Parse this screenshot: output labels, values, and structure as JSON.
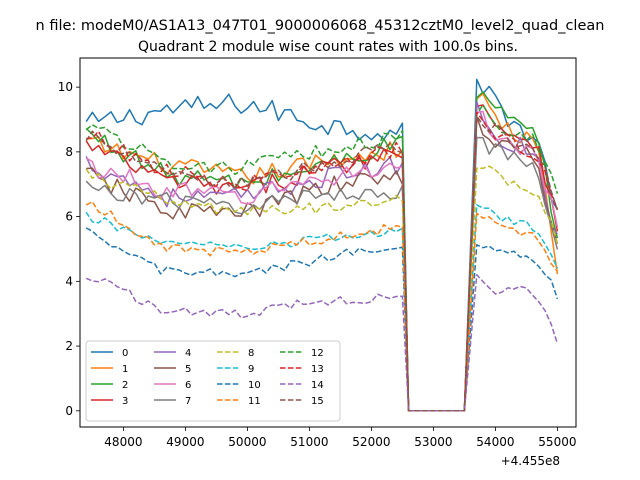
{
  "figure": {
    "suptitle": "n file: modeM0/AS1A13_047T01_9000006068_45312cztM0_level2_quad_clean",
    "title": "Quadrant 2 module wise count rates with 100.0s bins.",
    "x_offset_label": "+4.455e8"
  },
  "chart_data": {
    "type": "line",
    "title": "Quadrant 2 module wise count rates with 100.0s bins.",
    "xlabel": "",
    "ylabel": "",
    "x_offset": 445500000,
    "x_display_range": [
      47300,
      55300
    ],
    "xlim": [
      47000,
      55200
    ],
    "ylim": [
      -0.5,
      10.9
    ],
    "x_ticks": [
      48000,
      49000,
      50000,
      51000,
      52000,
      53000,
      54000,
      55000
    ],
    "x_tick_labels": [
      "48000",
      "49000",
      "50000",
      "51000",
      "52000",
      "53000",
      "54000",
      "55000"
    ],
    "y_ticks": [
      0,
      2,
      4,
      6,
      8,
      10
    ],
    "y_tick_labels": [
      "0",
      "2",
      "4",
      "6",
      "8",
      "10"
    ],
    "bin_size_s": 100,
    "segments": [
      [
        47400,
        52500
      ],
      [
        52600,
        53500
      ],
      [
        53700,
        55000
      ]
    ],
    "grid": false,
    "legend_placement": "lower-left",
    "legend_columns": 4,
    "series": [
      {
        "name": "0",
        "color": "#1f77b4",
        "dash": "solid",
        "base": [
          8.85,
          9.3,
          9.5,
          8.85,
          8.55
        ],
        "gap_level": 0,
        "post": [
          10.35,
          9.5,
          8.8,
          8.3,
          6.2
        ],
        "amp": 0.35
      },
      {
        "name": "1",
        "color": "#ff7f0e",
        "dash": "solid",
        "base": [
          8.3,
          7.6,
          7.2,
          7.7,
          8.1
        ],
        "gap_level": 0,
        "post": [
          9.8,
          9.0,
          8.5,
          8.2,
          4.3
        ],
        "amp": 0.3
      },
      {
        "name": "2",
        "color": "#2ca02c",
        "dash": "solid",
        "base": [
          8.6,
          7.3,
          7.0,
          7.6,
          8.3
        ],
        "gap_level": 0,
        "post": [
          9.9,
          9.3,
          8.8,
          8.4,
          5.5
        ],
        "amp": 0.3
      },
      {
        "name": "3",
        "color": "#d62728",
        "dash": "solid",
        "base": [
          8.2,
          7.1,
          6.8,
          7.5,
          8.0
        ],
        "gap_level": 0,
        "post": [
          9.7,
          8.8,
          8.5,
          8.3,
          5.8
        ],
        "amp": 0.3
      },
      {
        "name": "4",
        "color": "#9467bd",
        "dash": "solid",
        "base": [
          7.7,
          6.6,
          6.6,
          7.2,
          7.6
        ],
        "gap_level": 0,
        "post": [
          9.3,
          8.5,
          8.2,
          8.0,
          5.2
        ],
        "amp": 0.3
      },
      {
        "name": "5",
        "color": "#8c564b",
        "dash": "solid",
        "base": [
          7.3,
          6.2,
          6.1,
          6.9,
          7.3
        ],
        "gap_level": 0,
        "post": [
          8.9,
          8.3,
          8.0,
          7.7,
          5.0
        ],
        "amp": 0.3
      },
      {
        "name": "6",
        "color": "#e377c2",
        "dash": "solid",
        "base": [
          7.6,
          6.8,
          6.6,
          7.2,
          7.6
        ],
        "gap_level": 0,
        "post": [
          9.1,
          8.6,
          8.2,
          7.9,
          5.6
        ],
        "amp": 0.3
      },
      {
        "name": "7",
        "color": "#7f7f7f",
        "dash": "solid",
        "base": [
          6.9,
          6.5,
          6.3,
          6.7,
          6.8
        ],
        "gap_level": 0,
        "post": [
          8.4,
          8.0,
          7.7,
          7.4,
          5.0
        ],
        "amp": 0.25
      },
      {
        "name": "8",
        "color": "#bcbd22",
        "dash": "dashed",
        "base": [
          7.3,
          6.5,
          6.1,
          6.3,
          6.6
        ],
        "gap_level": 0,
        "post": [
          7.5,
          7.3,
          7.0,
          6.8,
          5.2
        ],
        "amp": 0.2
      },
      {
        "name": "9",
        "color": "#17becf",
        "dash": "dashed",
        "base": [
          6.0,
          5.2,
          5.0,
          5.3,
          5.6
        ],
        "gap_level": 0,
        "post": [
          6.4,
          6.0,
          5.8,
          5.6,
          4.5
        ],
        "amp": 0.15
      },
      {
        "name": "10",
        "color": "#1f77b4",
        "dash": "dashed",
        "base": [
          5.5,
          4.3,
          4.2,
          4.7,
          5.2
        ],
        "gap_level": 0,
        "post": [
          5.2,
          4.9,
          4.8,
          4.6,
          3.6
        ],
        "amp": 0.15
      },
      {
        "name": "11",
        "color": "#ff7f0e",
        "dash": "dashed",
        "base": [
          6.5,
          5.0,
          4.9,
          5.3,
          5.7
        ],
        "gap_level": 0,
        "post": [
          6.2,
          5.8,
          5.6,
          5.4,
          4.2
        ],
        "amp": 0.15
      },
      {
        "name": "12",
        "color": "#2ca02c",
        "dash": "dashed",
        "base": [
          8.9,
          7.7,
          7.5,
          8.0,
          8.5
        ],
        "gap_level": 0,
        "post": [
          9.4,
          8.9,
          8.6,
          8.3,
          6.6
        ],
        "amp": 0.25
      },
      {
        "name": "13",
        "color": "#d62728",
        "dash": "dashed",
        "base": [
          8.6,
          7.4,
          7.0,
          7.5,
          8.1
        ],
        "gap_level": 0,
        "post": [
          9.0,
          8.5,
          8.2,
          8.0,
          6.2
        ],
        "amp": 0.25
      },
      {
        "name": "14",
        "color": "#9467bd",
        "dash": "dashed",
        "base": [
          4.2,
          3.1,
          3.0,
          3.4,
          3.5
        ],
        "gap_level": 0,
        "post": [
          4.1,
          3.7,
          3.8,
          3.6,
          2.1
        ],
        "amp": 0.15
      },
      {
        "name": "15",
        "color": "#8c564b",
        "dash": "dashed",
        "base": [
          8.5,
          7.3,
          7.0,
          7.6,
          8.2
        ],
        "gap_level": 0,
        "post": [
          9.0,
          8.6,
          8.3,
          8.1,
          6.3
        ],
        "amp": 0.25
      }
    ]
  }
}
